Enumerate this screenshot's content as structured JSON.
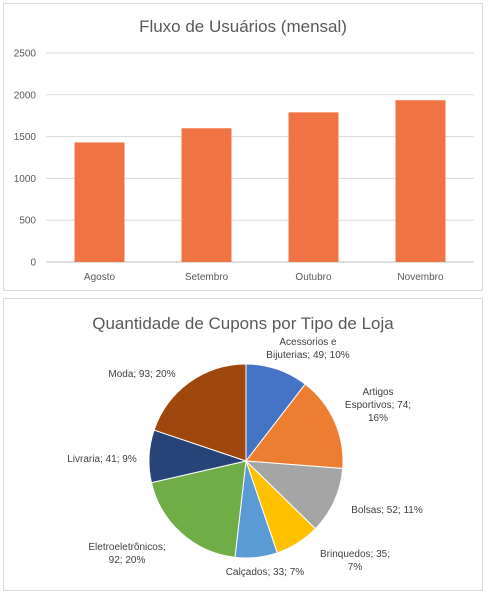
{
  "chart_data": [
    {
      "type": "bar",
      "title": "Fluxo de Usuários (mensal)",
      "categories": [
        "Agosto",
        "Setembro",
        "Outubro",
        "Novembro"
      ],
      "values": [
        1430,
        1600,
        1790,
        1935
      ],
      "ylim": [
        0,
        2500
      ],
      "yticks": [
        0,
        500,
        1000,
        1500,
        2000,
        2500
      ],
      "grid": true,
      "color": "#F07443"
    },
    {
      "type": "pie",
      "title": "Quantidade de Cupons por Tipo de Loja",
      "slices": [
        {
          "name": "Acessorios e Bijuterias",
          "value": 49,
          "percent": "10%",
          "color": "#4472C4",
          "label_lines": [
            "Acessorios e",
            "Bijuterias; 49; 10%"
          ]
        },
        {
          "name": "Artigos Esportivos",
          "value": 74,
          "percent": "16%",
          "color": "#ED7D31",
          "label_lines": [
            "Artigos",
            "Esportivos; 74;",
            "16%"
          ]
        },
        {
          "name": "Bolsas",
          "value": 52,
          "percent": "11%",
          "color": "#A5A5A5",
          "label_lines": [
            "Bolsas; 52; 11%"
          ]
        },
        {
          "name": "Brinquedos",
          "value": 35,
          "percent": "7%",
          "color": "#FFC000",
          "label_lines": [
            "Brinquedos; 35;",
            "7%"
          ]
        },
        {
          "name": "Calçados",
          "value": 33,
          "percent": "7%",
          "color": "#5B9BD5",
          "label_lines": [
            "Calçados; 33; 7%"
          ]
        },
        {
          "name": "Eletroeletrônicos",
          "value": 92,
          "percent": "20%",
          "color": "#70AD47",
          "label_lines": [
            "Eletroeletrônicos;",
            "92; 20%"
          ]
        },
        {
          "name": "Livraria",
          "value": 41,
          "percent": "9%",
          "color": "#264478",
          "label_lines": [
            "Livraria; 41; 9%"
          ]
        },
        {
          "name": "Moda",
          "value": 93,
          "percent": "20%",
          "color": "#9E480E",
          "label_lines": [
            "Moda; 93; 20%"
          ]
        }
      ]
    }
  ]
}
